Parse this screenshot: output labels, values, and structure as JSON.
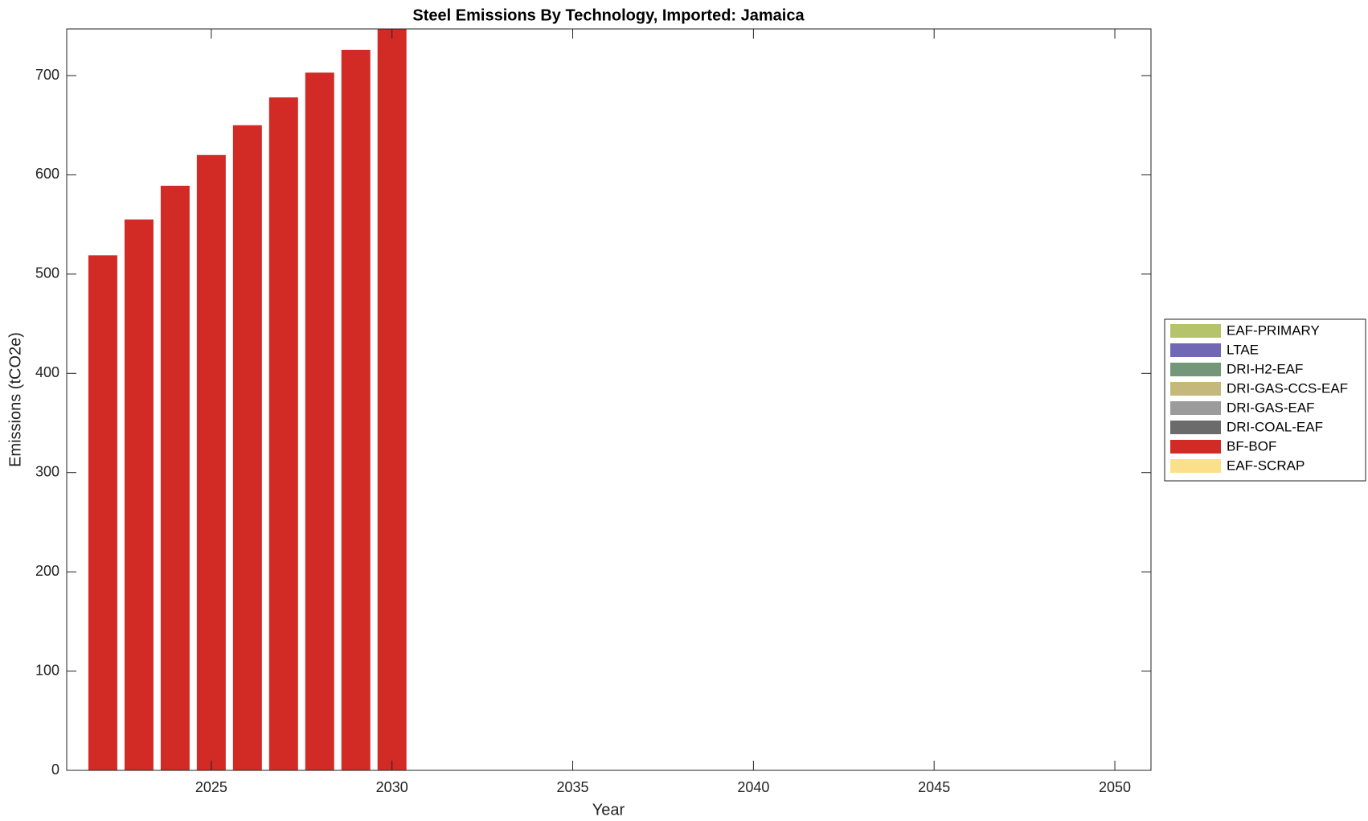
{
  "chart_data": {
    "type": "stacked_bar",
    "title": "Steel Emissions By Technology, Imported: Jamaica",
    "x_label": "Year",
    "y_label": "Emissions (tCO2e)",
    "x": [
      2022,
      2023,
      2024,
      2025,
      2026,
      2027,
      2028,
      2029,
      2030
    ],
    "series": [
      {
        "name": "EAF-PRIMARY",
        "color": "#b5c46a",
        "values": [
          0,
          0,
          0,
          0,
          0,
          0,
          0,
          0,
          0
        ]
      },
      {
        "name": "LTAE",
        "color": "#7068b5",
        "values": [
          0,
          0,
          0,
          0,
          0,
          0,
          0,
          0,
          0
        ]
      },
      {
        "name": "DRI-H2-EAF",
        "color": "#74977a",
        "values": [
          0,
          0,
          0,
          0,
          0,
          0,
          0,
          0,
          0
        ]
      },
      {
        "name": "DRI-GAS-CCS-EAF",
        "color": "#c4b97a",
        "values": [
          0,
          0,
          0,
          0,
          0,
          0,
          0,
          0,
          0
        ]
      },
      {
        "name": "DRI-GAS-EAF",
        "color": "#9b9b9b",
        "values": [
          0,
          0,
          0,
          0,
          0,
          0,
          0,
          0,
          0
        ]
      },
      {
        "name": "DRI-COAL-EAF",
        "color": "#6b6b6b",
        "values": [
          0,
          0,
          0,
          0,
          0,
          0,
          0,
          0,
          0
        ]
      },
      {
        "name": "BF-BOF",
        "color": "#d22a25",
        "values": [
          519,
          555,
          589,
          620,
          650,
          678,
          703,
          726,
          750
        ]
      },
      {
        "name": "EAF-SCRAP",
        "color": "#fbe08c",
        "values": [
          0,
          0,
          0,
          0,
          0,
          0,
          0,
          0,
          0
        ]
      }
    ],
    "xlim": [
      2021,
      2051
    ],
    "xticks": [
      2025,
      2030,
      2035,
      2040,
      2045,
      2050
    ],
    "ylim": [
      0,
      747
    ],
    "yticks": [
      0,
      100,
      200,
      300,
      400,
      500,
      600,
      700
    ],
    "legend": "right"
  }
}
